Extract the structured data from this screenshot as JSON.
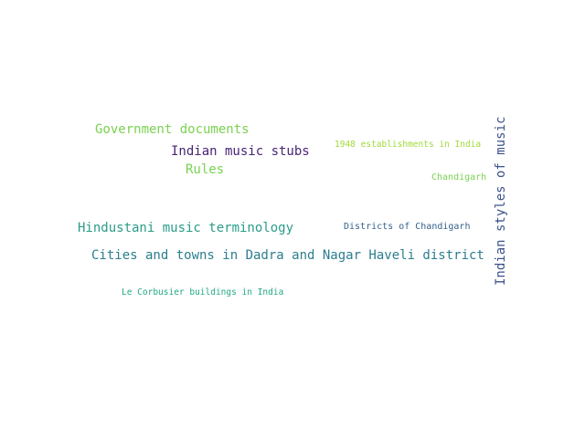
{
  "words": [
    {
      "id": "government-documents",
      "text": "Government documents",
      "color": "#7ad151"
    },
    {
      "id": "indian-music-stubs",
      "text": "Indian music stubs",
      "color": "#482475"
    },
    {
      "id": "rules",
      "text": "Rules",
      "color": "#7ad151"
    },
    {
      "id": "1948-establishments",
      "text": "1948 establishments in India",
      "color": "#a0da39"
    },
    {
      "id": "chandigarh",
      "text": "Chandigarh",
      "color": "#7ad151"
    },
    {
      "id": "indian-styles-of-music",
      "text": "Indian styles of music",
      "color": "#3b528b"
    },
    {
      "id": "hindustani-music-terminology",
      "text": "Hindustani music terminology",
      "color": "#2a9c8a"
    },
    {
      "id": "districts-of-chandigarh",
      "text": "Districts of Chandigarh",
      "color": "#34618d"
    },
    {
      "id": "cities-and-towns-dnh",
      "text": "Cities and towns in Dadra and Nagar Haveli district",
      "color": "#2c7d8e"
    },
    {
      "id": "le-corbusier-buildings",
      "text": "Le Corbusier buildings in India",
      "color": "#22a884"
    }
  ]
}
